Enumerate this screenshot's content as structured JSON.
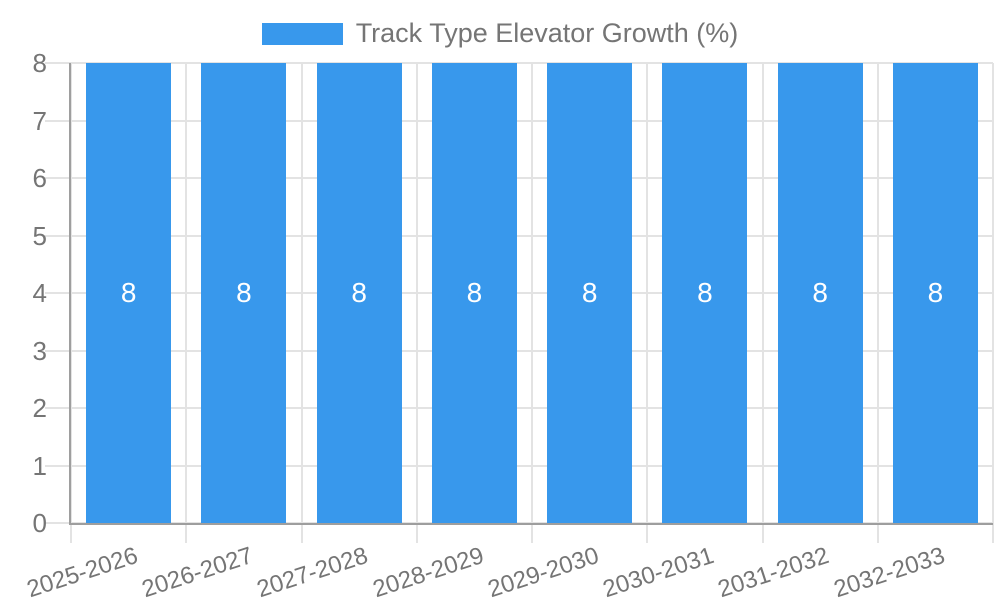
{
  "colors": {
    "bar": "#3898EC",
    "axis": "#9E9E9E",
    "grid": "#E3E3E3",
    "text": "#757575",
    "value_label": "#FFFFFF",
    "background": "#FFFFFF"
  },
  "chart_data": {
    "type": "bar",
    "title": "Track Type Elevator Growth (%)",
    "categories": [
      "2025-2026",
      "2026-2027",
      "2027-2028",
      "2028-2029",
      "2029-2030",
      "2030-2031",
      "2031-2032",
      "2032-2033"
    ],
    "values": [
      8,
      8,
      8,
      8,
      8,
      8,
      8,
      8
    ],
    "bar_value_labels": [
      "8",
      "8",
      "8",
      "8",
      "8",
      "8",
      "8",
      "8"
    ],
    "xlabel": "",
    "ylabel": "",
    "ylim": [
      0,
      8
    ],
    "yticks": [
      0,
      1,
      2,
      3,
      4,
      5,
      6,
      7,
      8
    ],
    "grid": true,
    "legend": {
      "position": "top",
      "entries": [
        {
          "label": "Track Type Elevator Growth (%)",
          "color": "#3898EC"
        }
      ]
    }
  }
}
